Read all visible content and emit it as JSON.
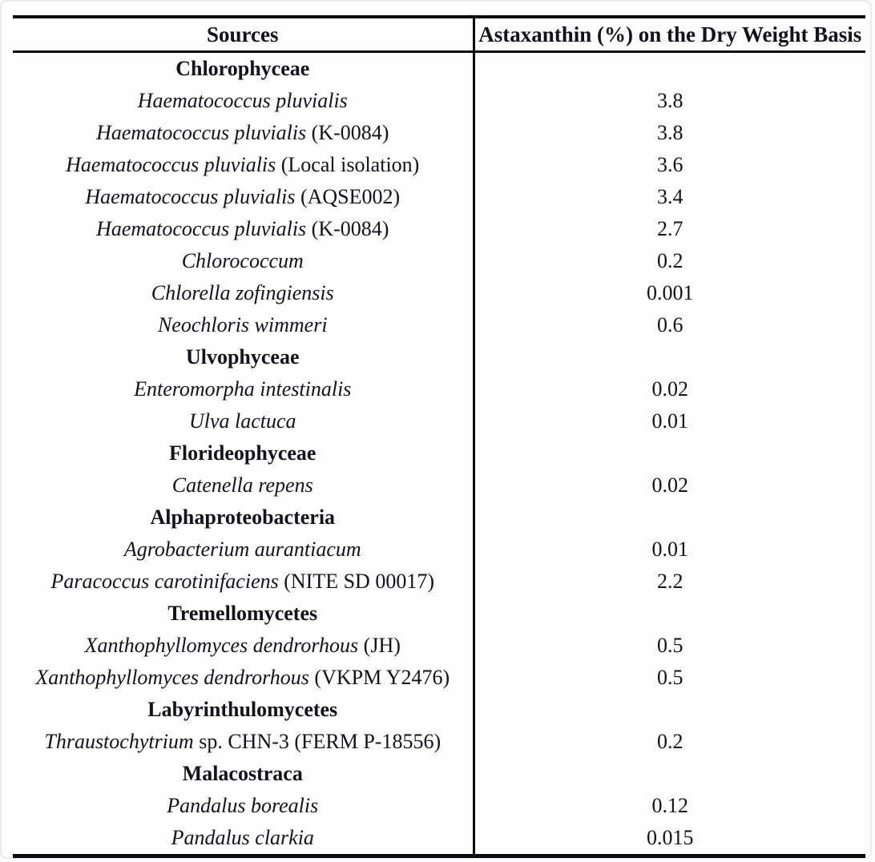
{
  "table": {
    "columns": [
      "Sources",
      "Astaxanthin (%) on the Dry Weight Basis"
    ],
    "rows": [
      {
        "type": "group",
        "label": "Chlorophyceae"
      },
      {
        "type": "species",
        "name": "Haematococcus pluvialis",
        "suffix": "",
        "value": "3.8"
      },
      {
        "type": "species",
        "name": "Haematococcus pluvialis",
        "suffix": " (K-0084)",
        "value": "3.8"
      },
      {
        "type": "species",
        "name": "Haematococcus pluvialis",
        "suffix": " (Local isolation)",
        "value": "3.6"
      },
      {
        "type": "species",
        "name": "Haematococcus pluvialis",
        "suffix": " (AQSE002)",
        "value": "3.4"
      },
      {
        "type": "species",
        "name": "Haematococcus pluvialis",
        "suffix": " (K-0084)",
        "value": "2.7"
      },
      {
        "type": "species",
        "name": "Chlorococcum",
        "suffix": "",
        "value": "0.2"
      },
      {
        "type": "species",
        "name": "Chlorella zofingiensis",
        "suffix": "",
        "value": "0.001"
      },
      {
        "type": "species",
        "name": "Neochloris wimmeri",
        "suffix": "",
        "value": "0.6"
      },
      {
        "type": "group",
        "label": "Ulvophyceae"
      },
      {
        "type": "species",
        "name": "Enteromorpha intestinalis",
        "suffix": "",
        "value": "0.02"
      },
      {
        "type": "species",
        "name": "Ulva lactuca",
        "suffix": "",
        "value": "0.01"
      },
      {
        "type": "group",
        "label": "Florideophyceae"
      },
      {
        "type": "species",
        "name": "Catenella repens",
        "suffix": "",
        "value": "0.02"
      },
      {
        "type": "group",
        "label": "Alphaproteobacteria"
      },
      {
        "type": "species",
        "name": "Agrobacterium aurantiacum",
        "suffix": "",
        "value": "0.01"
      },
      {
        "type": "species",
        "name": "Paracoccus carotinifaciens",
        "suffix": " (NITE SD 00017)",
        "value": "2.2"
      },
      {
        "type": "group",
        "label": "Tremellomycetes"
      },
      {
        "type": "species",
        "name": "Xanthophyllomyces dendrorhous",
        "suffix": " (JH)",
        "value": "0.5"
      },
      {
        "type": "species",
        "name": "Xanthophyllomyces dendrorhous",
        "suffix": " (VKPM Y2476)",
        "value": "0.5"
      },
      {
        "type": "group",
        "label": "Labyrinthulomycetes"
      },
      {
        "type": "species",
        "name": "Thraustochytrium",
        "suffix": " sp. CHN-3 (FERM P-18556)",
        "value": "0.2"
      },
      {
        "type": "group",
        "label": "Malacostraca"
      },
      {
        "type": "species",
        "name": "Pandalus borealis",
        "suffix": "",
        "value": "0.12"
      },
      {
        "type": "species",
        "name": "Pandalus clarkia",
        "suffix": "",
        "value": "0.015"
      }
    ]
  }
}
